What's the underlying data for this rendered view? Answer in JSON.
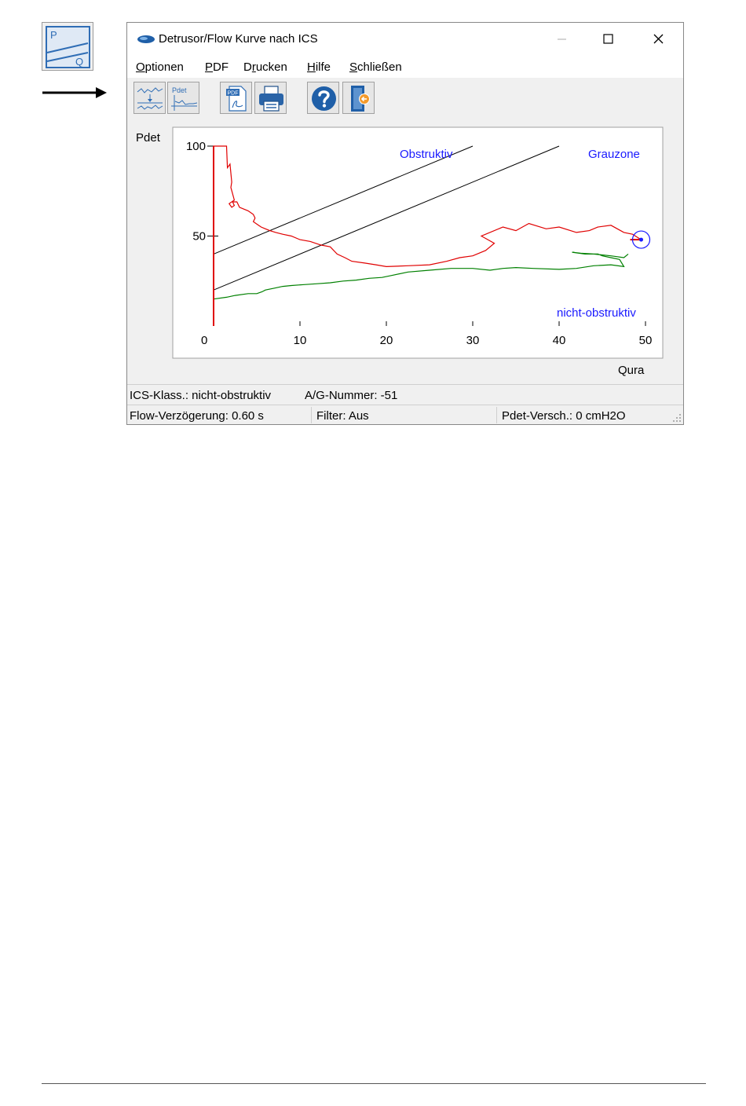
{
  "window": {
    "title": "Detrusor/Flow Kurve nach ICS",
    "controls": {
      "minimize": "minimize",
      "maximize": "maximize",
      "close": "close"
    }
  },
  "menu": {
    "items": [
      {
        "pre": "",
        "key": "O",
        "post": "ptionen"
      },
      {
        "pre": "",
        "key": "P",
        "post": "DF"
      },
      {
        "pre": "D",
        "key": "r",
        "post": "ucken"
      },
      {
        "pre": "",
        "key": "H",
        "post": "ilfe"
      },
      {
        "pre": "",
        "key": "S",
        "post": "chließen"
      }
    ]
  },
  "toolbar": {
    "buttons": [
      "curves-icon",
      "pdet-chart-icon",
      "pdf-icon",
      "printer-icon",
      "help-icon",
      "exit-door-icon"
    ],
    "pdet_icon_label": "Pdet",
    "pdf_icon_label": "PDF"
  },
  "side_icon": {
    "p_label": "P",
    "q_label": "Q"
  },
  "chart_data": {
    "type": "line",
    "ylabel": "Pdet",
    "xlabel": "Qura",
    "xlim": [
      0,
      50
    ],
    "ylim": [
      0,
      100
    ],
    "x_ticks": [
      "0",
      "10",
      "20",
      "30",
      "40",
      "50"
    ],
    "y_ticks": [
      "100",
      "50"
    ],
    "region_labels": [
      "Obstruktiv",
      "Grauzone",
      "nicht-obstruktiv"
    ],
    "boundary_lines": [
      {
        "from": [
          0,
          40
        ],
        "to": [
          30,
          100
        ]
      },
      {
        "from": [
          0,
          20
        ],
        "to": [
          40,
          100
        ]
      }
    ],
    "series": [
      {
        "color": "#e00000",
        "x": [
          0,
          0,
          0.5,
          1.5,
          1.6,
          1.9,
          2.1,
          2.0,
          2.4,
          1.8,
          2.1,
          2.4,
          2.2,
          2.7,
          3.0,
          4.0,
          4.6,
          4.8,
          4.6,
          5.2,
          5.5,
          6.0,
          6.5,
          7.2,
          8.0,
          9.0,
          10.0,
          11.2,
          12.4,
          13.5,
          14.3,
          15.2,
          16.0,
          17.5,
          18.8,
          20.0,
          22.5,
          25.0,
          27.0,
          28.5,
          30.0,
          31.5,
          32.5,
          31.0,
          33.5,
          35.0,
          36.5,
          38.5,
          40.0,
          42.0,
          43.5,
          44.5,
          46.0,
          47.5,
          48.5,
          49.5
        ],
        "y": [
          15,
          100,
          100,
          100,
          88,
          90,
          80,
          77,
          70,
          68,
          66,
          67,
          69,
          69,
          66,
          64,
          62,
          60,
          58,
          56,
          55,
          54,
          53,
          52,
          51,
          50,
          48,
          47,
          45,
          44,
          40,
          38,
          36,
          35,
          34,
          33,
          33.5,
          34,
          36,
          38,
          39,
          42,
          46,
          50,
          55,
          53,
          57,
          54,
          55,
          52,
          53,
          55,
          56,
          52,
          51,
          48
        ]
      },
      {
        "color": "#008000",
        "x": [
          0,
          1.5,
          2.5,
          4.0,
          5.0,
          5.6,
          6.0,
          7.0,
          8.0,
          9.0,
          10.5,
          12.0,
          13.5,
          15.0,
          16.5,
          18.0,
          19.5,
          20.5,
          22.5,
          25.0,
          27.5,
          30.0,
          32.0,
          33.5,
          35.0,
          37.0,
          40.0,
          42.0,
          44.0,
          46.0,
          47.5,
          47.0,
          46.0,
          45.0,
          44.5,
          43.0,
          41.5,
          42.5,
          44.0,
          46.0,
          47.5,
          48.0
        ],
        "y": [
          15,
          16,
          17,
          18,
          18,
          19,
          20,
          21,
          22,
          22.5,
          23,
          23.5,
          24,
          25,
          25.5,
          26.5,
          27,
          28,
          30,
          31,
          32,
          32,
          31,
          32,
          32.5,
          32,
          31.5,
          32,
          33.5,
          34,
          33,
          37,
          38,
          39,
          40,
          40,
          41,
          40.5,
          40,
          39,
          38,
          40
        ]
      }
    ],
    "end_marker": {
      "x": 49.5,
      "y": 48
    }
  },
  "status": {
    "ics_class": "ICS-Klass.: nicht-obstruktiv",
    "ag_number": "A/G-Nummer: -51",
    "flow_delay": "Flow-Verzögerung: 0.60 s",
    "filter": "Filter: Aus",
    "pdet_shift": "Pdet-Versch.: 0 cmH2O"
  }
}
